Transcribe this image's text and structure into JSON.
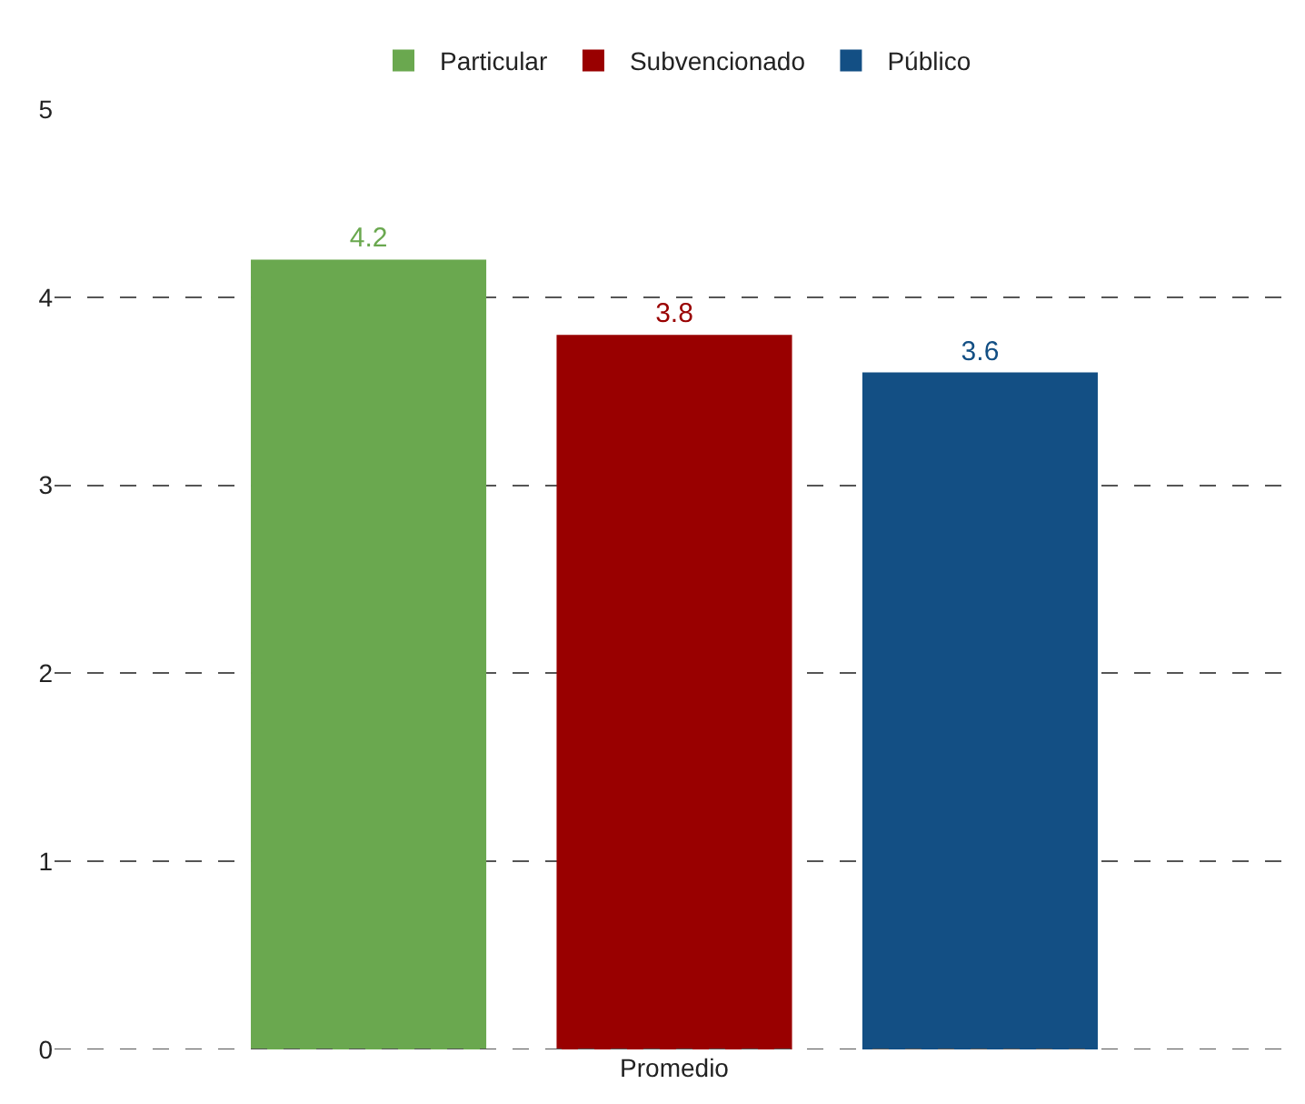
{
  "chart_data": {
    "type": "bar",
    "categories": [
      "Promedio"
    ],
    "series": [
      {
        "name": "Particular",
        "color": "#6aa84f",
        "values": [
          4.2
        ]
      },
      {
        "name": "Subvencionado",
        "color": "#990000",
        "values": [
          3.8
        ]
      },
      {
        "name": "Público",
        "color": "#134f84",
        "values": [
          3.6
        ]
      }
    ],
    "ylim": [
      0,
      5
    ],
    "yticks": [
      0,
      1,
      2,
      3,
      4,
      5
    ],
    "grid": "y",
    "legend": "top",
    "data_labels": true
  }
}
